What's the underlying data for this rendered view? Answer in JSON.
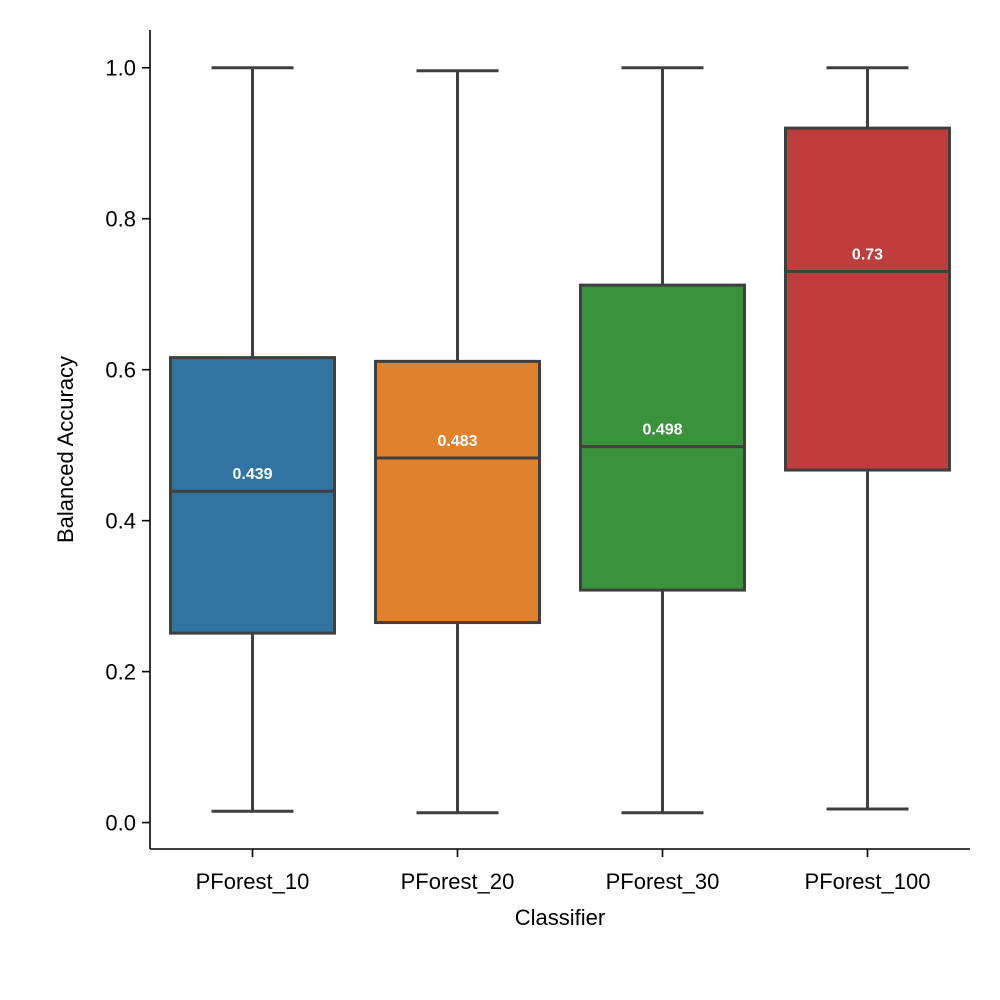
{
  "chart_data": {
    "type": "box",
    "title": "",
    "xlabel": "Classifier",
    "ylabel": "Balanced Accuracy",
    "ylim": [
      -0.035,
      1.05
    ],
    "yticks": [
      0.0,
      0.2,
      0.4,
      0.6,
      0.8,
      1.0
    ],
    "ytick_labels": [
      "0.0",
      "0.2",
      "0.4",
      "0.6",
      "0.8",
      "1.0"
    ],
    "grid": false,
    "categories": [
      "PForest_10",
      "PForest_20",
      "PForest_30",
      "PForest_100"
    ],
    "series": [
      {
        "category": "PForest_10",
        "color": "#3274a1",
        "whisker_low": 0.015,
        "q1": 0.251,
        "median": 0.439,
        "q3": 0.616,
        "whisker_high": 1.0,
        "median_label": "0.439"
      },
      {
        "category": "PForest_20",
        "color": "#e1812c",
        "whisker_low": 0.013,
        "q1": 0.265,
        "median": 0.483,
        "q3": 0.611,
        "whisker_high": 0.996,
        "median_label": "0.483"
      },
      {
        "category": "PForest_30",
        "color": "#3a923a",
        "whisker_low": 0.013,
        "q1": 0.308,
        "median": 0.498,
        "q3": 0.712,
        "whisker_high": 1.0,
        "median_label": "0.498"
      },
      {
        "category": "PForest_100",
        "color": "#c03d3e",
        "whisker_low": 0.018,
        "q1": 0.467,
        "median": 0.73,
        "q3": 0.92,
        "whisker_high": 1.0,
        "median_label": "0.73"
      }
    ]
  }
}
